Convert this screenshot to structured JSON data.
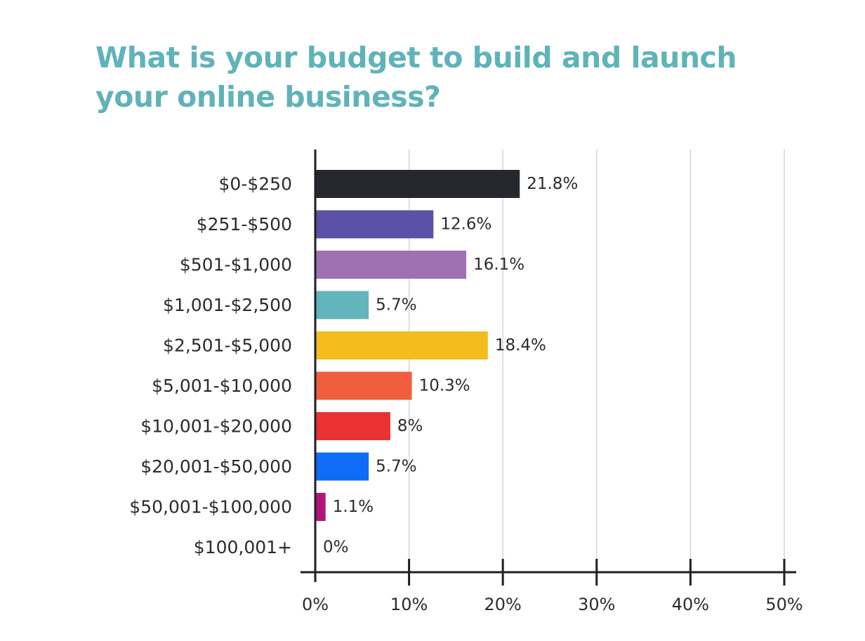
{
  "chart_data": {
    "type": "bar",
    "orientation": "horizontal",
    "title": "What is your budget to build and launch your online business?",
    "categories": [
      "$0-$250",
      "$251-$500",
      "$501-$1,000",
      "$1,001-$2,500",
      "$2,501-$5,000",
      "$5,001-$10,000",
      "$10,001-$20,000",
      "$20,001-$50,000",
      "$50,001-$100,000",
      "$100,001+"
    ],
    "values": [
      21.8,
      12.6,
      16.1,
      5.7,
      18.4,
      10.3,
      8,
      5.7,
      1.1,
      0
    ],
    "value_labels": [
      "21.8%",
      "12.6%",
      "16.1%",
      "5.7%",
      "18.4%",
      "10.3%",
      "8%",
      "5.7%",
      "1.1%",
      "0%"
    ],
    "colors": [
      "#262830",
      "#5c51a6",
      "#9f71b3",
      "#62b5bb",
      "#f4bd1d",
      "#f05e3e",
      "#ea3232",
      "#0f6cf6",
      "#b0157b",
      "#b0157b"
    ],
    "xlim": [
      0,
      50
    ],
    "x_ticks": [
      0,
      10,
      20,
      30,
      40,
      50
    ],
    "x_tick_labels": [
      "0%",
      "10%",
      "20%",
      "30%",
      "40%",
      "50%"
    ],
    "xlabel": "",
    "ylabel": "",
    "grid": "vertical",
    "legend": "none",
    "title_color": "#5fb3b9",
    "gridline_color": "#d6d6d6",
    "axis_color": "#1e1e24"
  }
}
